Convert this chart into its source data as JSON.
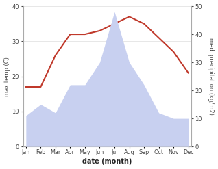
{
  "months": [
    "Jan",
    "Feb",
    "Mar",
    "Apr",
    "May",
    "Jun",
    "Jul",
    "Aug",
    "Sep",
    "Oct",
    "Nov",
    "Dec"
  ],
  "temperature": [
    17,
    17,
    26,
    32,
    32,
    33,
    35,
    37,
    35,
    31,
    27,
    21
  ],
  "precipitation": [
    11,
    15,
    12,
    22,
    22,
    30,
    48,
    30,
    22,
    12,
    10,
    10
  ],
  "temp_color": "#c0392b",
  "precip_fill_color": "#c8d0f0",
  "temp_ylim": [
    0,
    40
  ],
  "precip_ylim": [
    0,
    50
  ],
  "xlabel": "date (month)",
  "ylabel_left": "max temp (C)",
  "ylabel_right": "med. precipitation (kg/m2)",
  "background_color": "#ffffff",
  "grid_color": "#dddddd"
}
